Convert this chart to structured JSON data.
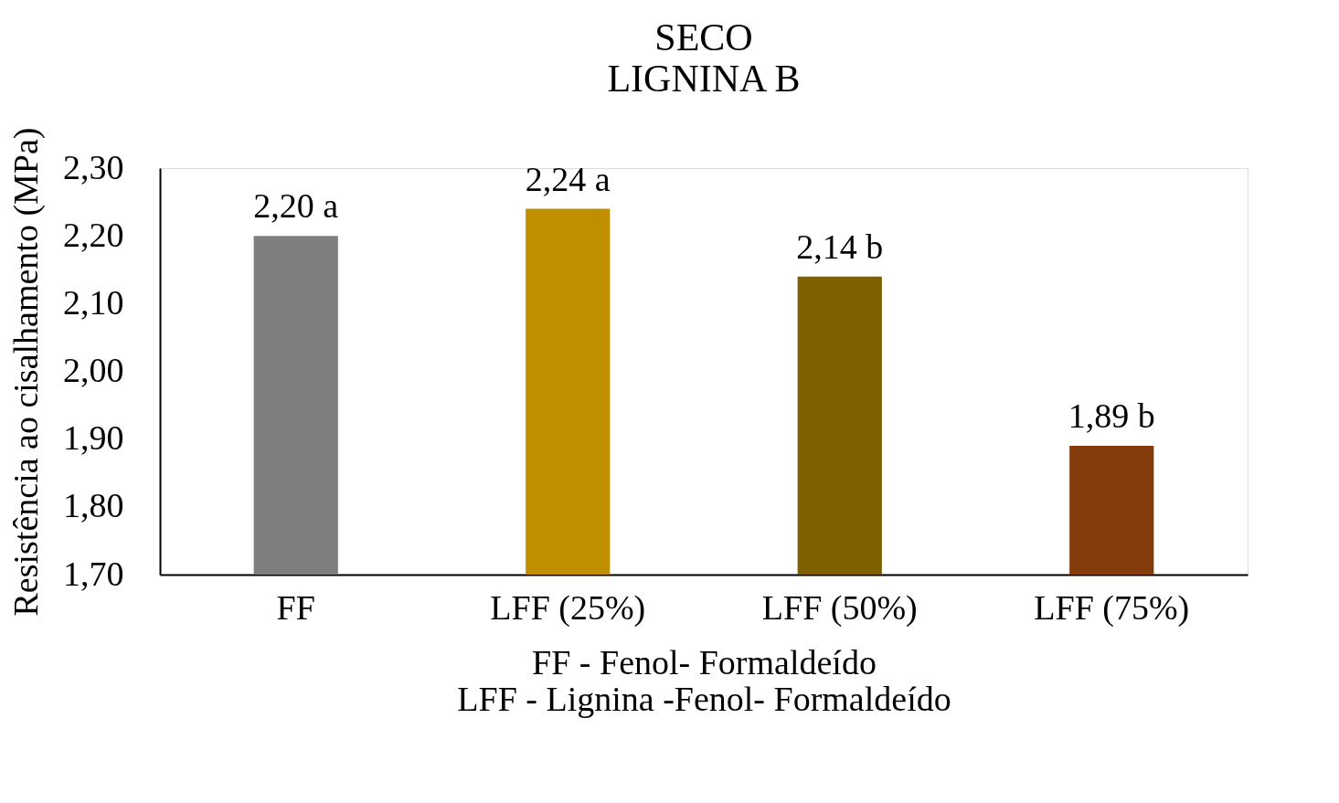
{
  "chart_data": {
    "type": "bar",
    "title": "SECO",
    "subtitle": "LIGNINA B",
    "ylabel": "Resistência ao cisalhamento (MPa)",
    "categories": [
      "FF",
      "LFF (25%)",
      "LFF (50%)",
      "LFF (75%)"
    ],
    "values": [
      2.2,
      2.24,
      2.14,
      1.89
    ],
    "colors": [
      "#7f7f7f",
      "#bf8f00",
      "#7f6000",
      "#843c0c"
    ],
    "value_labels": [
      "2,20 a",
      "2,24 a",
      "2,14 b",
      "1,89 b"
    ],
    "ylim": [
      1.7,
      2.3
    ],
    "yticks": [
      {
        "value": 1.7,
        "label": "1,70"
      },
      {
        "value": 1.8,
        "label": "1,80"
      },
      {
        "value": 1.9,
        "label": "1,90"
      },
      {
        "value": 2.0,
        "label": "2,00"
      },
      {
        "value": 2.1,
        "label": "2,10"
      },
      {
        "value": 2.2,
        "label": "2,20"
      },
      {
        "value": 2.3,
        "label": "2,30"
      }
    ],
    "grid": false,
    "legend": false,
    "annotations": [
      "FF - Fenol- Formaldeído",
      "LFF - Lignina -Fenol- Formaldeído"
    ]
  }
}
